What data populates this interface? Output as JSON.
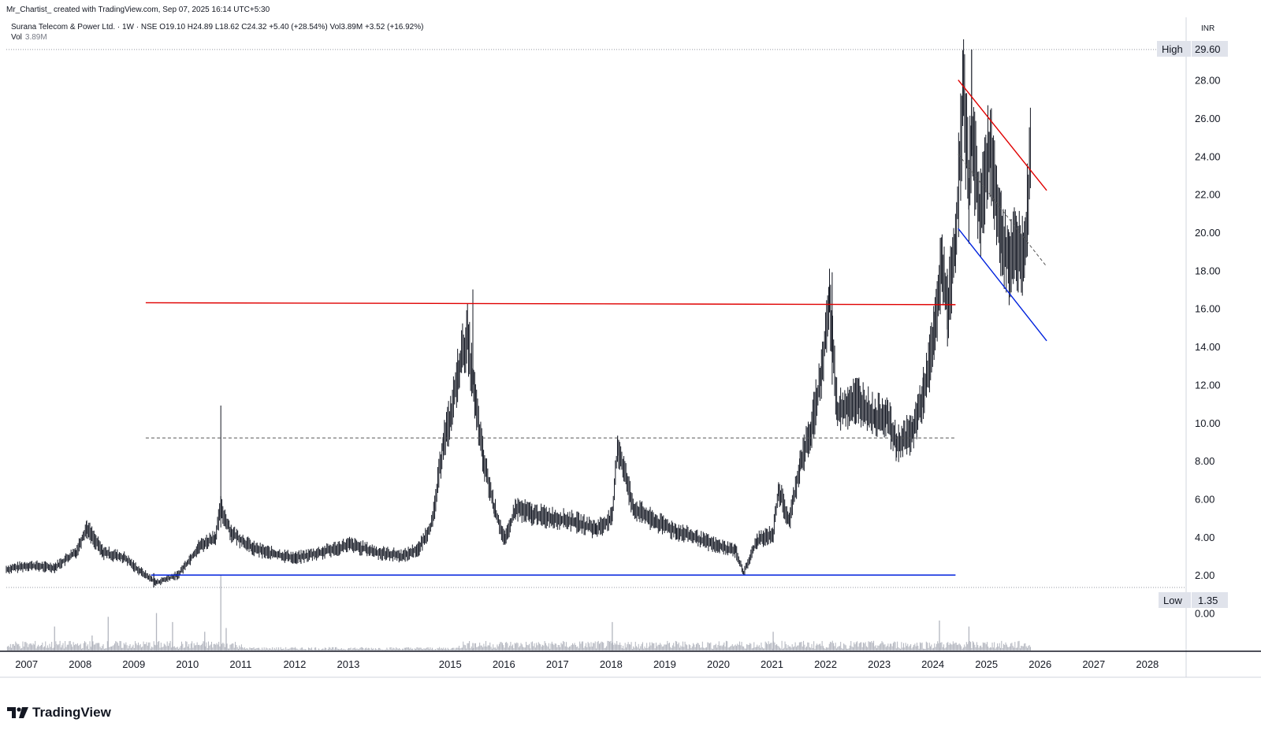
{
  "header": {
    "author_line": "Mr_Chartist_  created with TradingView.com, Sep 07, 2025 16:14 UTC+5:30",
    "symbol": "Surana Telecom & Power Ltd.",
    "interval": "1W",
    "exchange": "NSE",
    "ohlc_text": "Surana Telecom & Power Ltd. · 1W · NSE  O19.10  H24.89  L18.62  C24.32  +5.40 (+28.54%)  Vol3.89M  +3.52 (+16.92%)",
    "vol_label": "Vol",
    "vol_value": "3.89M"
  },
  "logo": {
    "text": "TradingView",
    "icon": "tradingview-logo-icon"
  },
  "price_axis": {
    "currency": "INR",
    "high_label": "High",
    "high_value": "29.60",
    "low_label": "Low",
    "low_value": "1.35"
  },
  "colors": {
    "candles": "#131722",
    "resistance": "#e00000",
    "support": "#0022dd",
    "dashed": "#555555",
    "volume": "#b2b5be",
    "badge_bg": "#e0e3eb"
  },
  "chart_data": {
    "type": "line",
    "title": "Surana Telecom & Power Ltd. · 1W · NSE",
    "ylabel": "INR",
    "ylim": [
      0,
      30
    ],
    "xlim": [
      2006.6,
      2028.6
    ],
    "y_ticks": [
      "0.00",
      "2.00",
      "4.00",
      "6.00",
      "8.00",
      "10.00",
      "12.00",
      "14.00",
      "16.00",
      "18.00",
      "20.00",
      "22.00",
      "24.00",
      "26.00",
      "28.00"
    ],
    "x_ticks": [
      "2007",
      "2008",
      "2009",
      "2010",
      "2011",
      "2012",
      "2013",
      "2015",
      "2016",
      "2017",
      "2018",
      "2019",
      "2020",
      "2021",
      "2022",
      "2023",
      "2024",
      "2025",
      "2026",
      "2027",
      "2028"
    ],
    "x_tick_positions": [
      2007.0,
      2008.0,
      2009.0,
      2010.0,
      2011.0,
      2012.0,
      2013.0,
      2014.9,
      2015.9,
      2016.9,
      2017.9,
      2018.9,
      2019.9,
      2020.9,
      2021.9,
      2022.9,
      2023.9,
      2024.9,
      2025.9,
      2026.9,
      2027.9
    ],
    "high": 29.6,
    "low": 1.35,
    "price_series": {
      "name": "Surana Telecom & Power Ltd.",
      "x": [
        2006.6,
        2007.0,
        2007.5,
        2007.9,
        2008.1,
        2008.4,
        2008.8,
        2009.1,
        2009.4,
        2009.8,
        2010.2,
        2010.5,
        2010.6,
        2010.8,
        2011.2,
        2011.6,
        2012.0,
        2012.5,
        2013.0,
        2013.5,
        2014.0,
        2014.3,
        2014.55,
        2014.75,
        2014.9,
        2015.05,
        2015.2,
        2015.35,
        2015.5,
        2015.7,
        2015.9,
        2016.1,
        2016.4,
        2016.8,
        2017.2,
        2017.6,
        2017.9,
        2018.0,
        2018.3,
        2018.7,
        2019.1,
        2019.5,
        2019.9,
        2020.2,
        2020.35,
        2020.6,
        2020.9,
        2021.0,
        2021.2,
        2021.4,
        2021.6,
        2021.8,
        2021.95,
        2022.1,
        2022.3,
        2022.5,
        2022.8,
        2023.0,
        2023.2,
        2023.5,
        2023.7,
        2023.9,
        2024.05,
        2024.15,
        2024.3,
        2024.45,
        2024.55,
        2024.6,
        2024.75,
        2024.95,
        2025.15,
        2025.3,
        2025.45,
        2025.6,
        2025.7
      ],
      "y": [
        2.3,
        2.5,
        2.4,
        3.2,
        4.5,
        3.2,
        2.9,
        2.2,
        1.6,
        2.0,
        3.5,
        4.0,
        5.5,
        4.2,
        3.4,
        3.1,
        2.9,
        3.2,
        3.6,
        3.2,
        3.0,
        3.4,
        4.8,
        9.0,
        10.5,
        13.0,
        14.5,
        11.0,
        8.0,
        5.5,
        3.8,
        5.5,
        5.2,
        5.0,
        4.8,
        4.4,
        5.0,
        8.8,
        5.5,
        4.8,
        4.3,
        3.9,
        3.5,
        3.3,
        2.1,
        3.8,
        4.2,
        6.5,
        4.8,
        7.8,
        9.5,
        12.5,
        16.5,
        10.5,
        11.0,
        11.2,
        10.2,
        10.5,
        8.8,
        9.5,
        11.5,
        14.5,
        18.5,
        16.0,
        19.5,
        27.5,
        22.0,
        25.5,
        21.0,
        24.5,
        20.0,
        18.5,
        19.2,
        19.0,
        24.32
      ],
      "color": "#131722"
    },
    "volume_series": {
      "name": "Vol",
      "x": [
        2007.5,
        2008.2,
        2008.5,
        2009.4,
        2009.7,
        2010.3,
        2010.6,
        2010.7,
        2015.3,
        2017.9,
        2020.9,
        2024.0,
        2024.55
      ],
      "y": [
        3.2,
        2.0,
        4.5,
        5.0,
        3.8,
        2.5,
        10.0,
        3.0,
        1.0,
        3.8,
        2.5,
        4.0,
        3.2
      ]
    },
    "annotations": [
      {
        "type": "horizontal",
        "color": "#e00000",
        "x": [
          2009.2,
          2024.3
        ],
        "y": [
          16.3,
          16.2
        ]
      },
      {
        "type": "horizontal",
        "color": "#0022dd",
        "x": [
          2009.3,
          2024.3
        ],
        "y": [
          2.0,
          2.0
        ]
      },
      {
        "type": "dashed",
        "color": "#555555",
        "x": [
          2009.2,
          2024.3
        ],
        "y": [
          9.2,
          9.2
        ]
      },
      {
        "type": "trend",
        "color": "#e00000",
        "x": [
          2024.35,
          2026.0
        ],
        "y": [
          28.0,
          22.2
        ]
      },
      {
        "type": "trend",
        "color": "#0022dd",
        "x": [
          2024.35,
          2026.0
        ],
        "y": [
          20.2,
          14.3
        ]
      },
      {
        "type": "dashed",
        "color": "#555555",
        "x": [
          2024.35,
          2026.0
        ],
        "y": [
          24.1,
          18.2
        ]
      }
    ]
  }
}
